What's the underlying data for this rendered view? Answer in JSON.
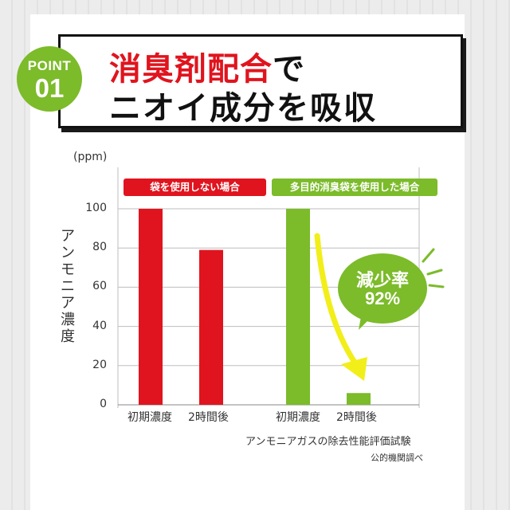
{
  "header": {
    "badge_top": "POINT",
    "badge_num": "01",
    "line1_highlight": "消臭剤配合",
    "line1_rest": "で",
    "line2": "ニオイ成分を吸収"
  },
  "chart_data": {
    "type": "bar",
    "groups": [
      {
        "name": "袋を使用しない場合",
        "color": "#e0141e",
        "categories": [
          "初期濃度",
          "2時間後"
        ],
        "values": [
          100,
          79
        ]
      },
      {
        "name": "多目的消臭袋を使用した場合",
        "color": "#7cbb2a",
        "categories": [
          "初期濃度",
          "2時間後"
        ],
        "values": [
          100,
          6
        ]
      }
    ],
    "unit": "(ppm)",
    "ylabel": "アンモニア濃度",
    "ylim": [
      0,
      100
    ],
    "yticks": [
      "0",
      "20",
      "40",
      "60",
      "80",
      "100"
    ],
    "annotation": {
      "label": "減少率",
      "value": "92%"
    },
    "arrow_color": "#f2ee1a",
    "grid_color": "#bdbdbd"
  },
  "source": {
    "line1": "アンモニアガスの除去性能評価試験",
    "line2": "公的機関調べ"
  }
}
